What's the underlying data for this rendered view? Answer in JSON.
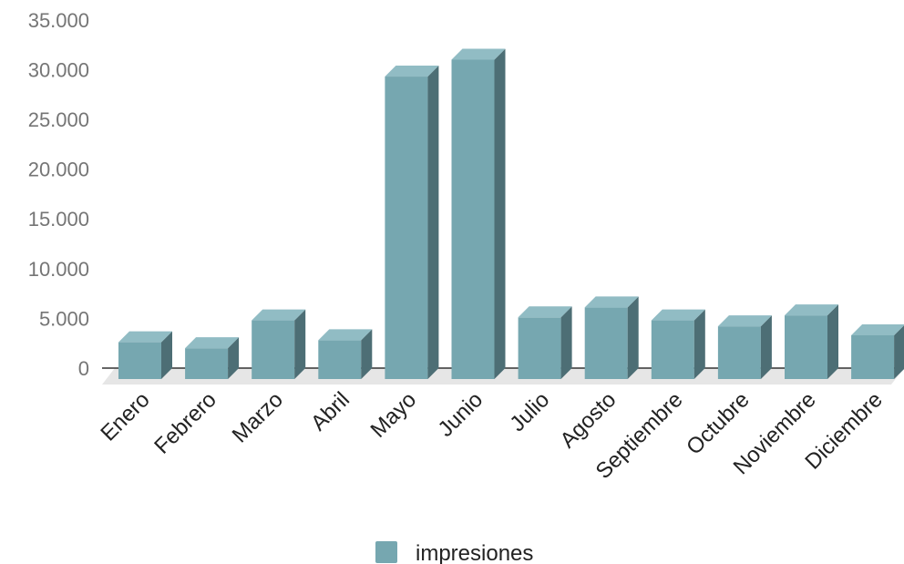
{
  "chart_data": {
    "type": "bar",
    "style": "3d-column",
    "categories": [
      "Enero",
      "Febrero",
      "Marzo",
      "Abril",
      "Mayo",
      "Junio",
      "Julio",
      "Agosto",
      "Septiembre",
      "Octubre",
      "Noviembre",
      "Diciembre"
    ],
    "series": [
      {
        "name": "impresiones",
        "values": [
          2600,
          2000,
          4800,
          2800,
          29300,
          31000,
          5100,
          6100,
          4800,
          4200,
          5300,
          3300
        ]
      }
    ],
    "ylim": [
      0,
      35000
    ],
    "yticks": [
      0,
      5000,
      10000,
      15000,
      20000,
      25000,
      30000,
      35000
    ],
    "ytick_labels": [
      "0",
      "5.000",
      "10.000",
      "15.000",
      "20.000",
      "25.000",
      "30.000",
      "35.000"
    ],
    "grid": false,
    "legend_position": "bottom-center",
    "colors": {
      "bar_front": "#76a7b0",
      "bar_top": "#91bcc4",
      "bar_side": "#4d6e75",
      "floor": "#e6e6e6",
      "baseline": "#333333"
    }
  }
}
